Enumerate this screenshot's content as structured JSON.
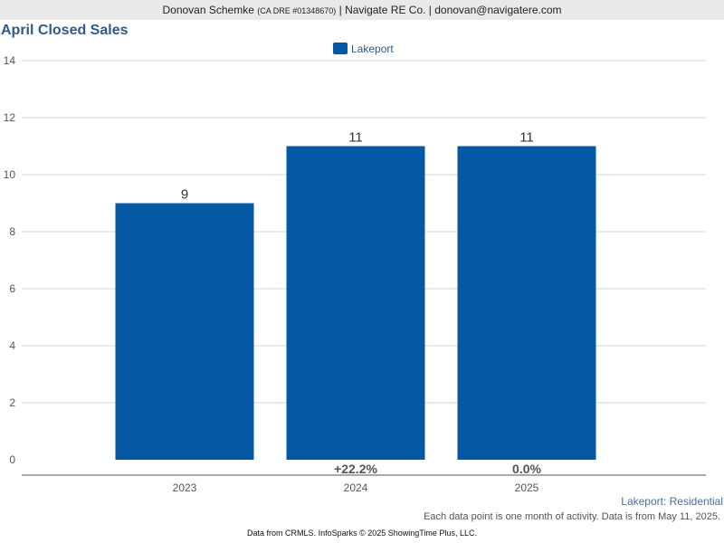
{
  "header": {
    "name": "Donovan Schemke",
    "license": "(CA DRE #01348670)",
    "rest": "| Navigate RE Co. | donovan@navigatere.com"
  },
  "chart_data": {
    "type": "bar",
    "title": "April Closed Sales",
    "categories": [
      "2023",
      "2024",
      "2025"
    ],
    "series": [
      {
        "name": "Lakeport",
        "values": [
          9,
          11,
          11
        ],
        "color": "#0558a3"
      }
    ],
    "data_labels": [
      "9",
      "11",
      "11"
    ],
    "change_labels": [
      "",
      "+22.2%",
      "0.0%"
    ],
    "y_ticks": [
      0,
      2,
      4,
      6,
      8,
      10,
      12,
      14
    ],
    "ylim": [
      0,
      14
    ],
    "grid": true,
    "legend_position": "top-center",
    "xlabel": "",
    "ylabel": ""
  },
  "subtitle": "Lakeport: Residential",
  "note": "Each data point is one month of activity. Data is from May 11, 2025.",
  "footer": "Data from CRMLS. InfoSparks © 2025 ShowingTime Plus, LLC."
}
